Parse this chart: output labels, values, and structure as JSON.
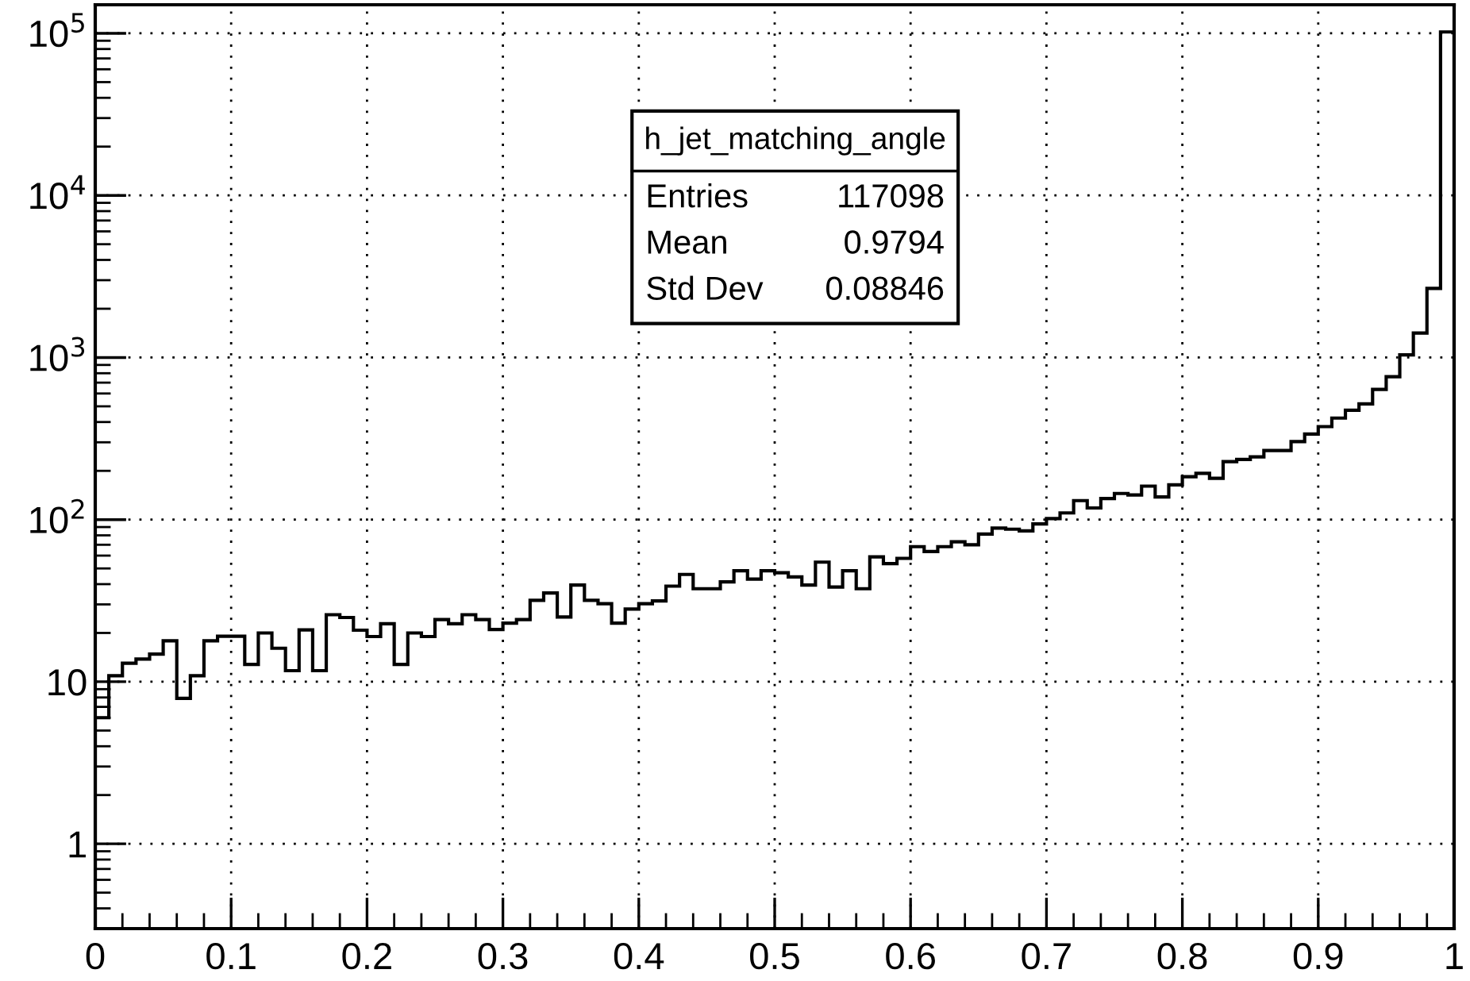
{
  "chart_data": {
    "type": "histogram",
    "bins": [
      0,
      0.01,
      0.02,
      0.03,
      0.04,
      0.05,
      0.06,
      0.07,
      0.08,
      0.09,
      0.1,
      0.11,
      0.12,
      0.13,
      0.14,
      0.15,
      0.16,
      0.17,
      0.18,
      0.19,
      0.2,
      0.21,
      0.22,
      0.23,
      0.24,
      0.25,
      0.26,
      0.27,
      0.28,
      0.29,
      0.3,
      0.31,
      0.32,
      0.33,
      0.34,
      0.35,
      0.36,
      0.37,
      0.38,
      0.39,
      0.4,
      0.41,
      0.42,
      0.43,
      0.44,
      0.45,
      0.46,
      0.47,
      0.48,
      0.49,
      0.5,
      0.51,
      0.52,
      0.53,
      0.54,
      0.55,
      0.56,
      0.57,
      0.58,
      0.59,
      0.6,
      0.61,
      0.62,
      0.63,
      0.64,
      0.65,
      0.66,
      0.67,
      0.68,
      0.69,
      0.7,
      0.71,
      0.72,
      0.73,
      0.74,
      0.75,
      0.76,
      0.77,
      0.78,
      0.79,
      0.8,
      0.81,
      0.82,
      0.83,
      0.84,
      0.85,
      0.86,
      0.87,
      0.88,
      0.89,
      0.9,
      0.91,
      0.92,
      0.93,
      0.94,
      0.95,
      0.96,
      0.97,
      0.98,
      0.99,
      1
    ],
    "values": [
      6,
      10.9,
      13,
      13.8,
      14.8,
      17.9,
      7.9,
      10.9,
      17.9,
      19.1,
      19.1,
      12.8,
      20,
      16.1,
      11.7,
      20.9,
      11.7,
      25.9,
      24.9,
      20.8,
      19,
      22.8,
      12.8,
      20,
      19,
      24.2,
      22.8,
      25.9,
      24.2,
      21,
      23,
      24.2,
      31.8,
      35.3,
      25.1,
      39.5,
      31.8,
      30.3,
      23,
      28.1,
      30.3,
      31.5,
      38.9,
      45.9,
      37.5,
      37.5,
      41.3,
      48.4,
      43,
      48.4,
      47,
      44.3,
      39.5,
      54.7,
      38.4,
      48.4,
      37.5,
      58.9,
      53.5,
      57.7,
      68.1,
      63.6,
      68.1,
      73,
      70,
      81.5,
      88.6,
      87.3,
      85.3,
      94.1,
      101.5,
      110,
      131,
      118,
      135,
      145,
      142,
      161,
      138,
      164,
      184,
      193,
      180,
      228,
      235,
      244,
      267,
      267,
      303,
      337,
      375,
      423,
      473,
      518,
      636,
      762,
      1038,
      1416,
      2670,
      102000
    ],
    "color": "#000000",
    "log": "y",
    "xlim": [
      0,
      1
    ],
    "xticks": [
      0,
      0.1,
      0.2,
      0.3,
      0.4,
      0.5,
      0.6,
      0.7,
      0.8,
      0.9,
      1
    ],
    "ylim": [
      0.3,
      150000
    ],
    "yticks": [
      1,
      10,
      {
        "value": 100,
        "label": "10$^{2}$"
      },
      {
        "value": 1000,
        "label": "10$^{3}$"
      },
      {
        "value": 10000,
        "label": "10$^{4}$"
      },
      {
        "value": 100000,
        "label": "10$^{5}$"
      }
    ],
    "grid": true,
    "annotations": [
      "h_jet_matching_angle",
      "Entries",
      "117098",
      "Mean",
      "0.9794",
      "Std Dev",
      "0.08846"
    ]
  }
}
